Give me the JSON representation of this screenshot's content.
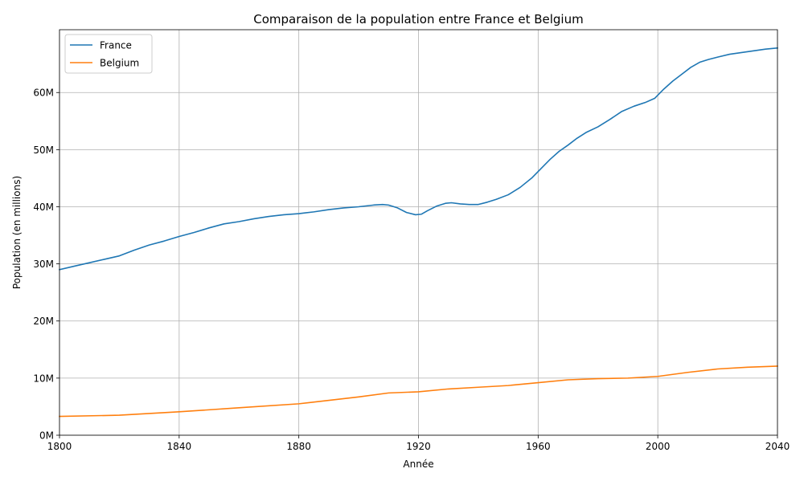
{
  "chart_data": {
    "type": "line",
    "title": "Comparaison de la population entre France et Belgium",
    "xlabel": "Année",
    "ylabel": "Population (en millions)",
    "xlim": [
      1800,
      2040
    ],
    "ylim": [
      0,
      71
    ],
    "x_ticks": [
      1800,
      1840,
      1880,
      1920,
      1960,
      2000,
      2040
    ],
    "x_tick_labels": [
      "1800",
      "1840",
      "1880",
      "1920",
      "1960",
      "2000",
      "2040"
    ],
    "y_ticks": [
      0,
      10,
      20,
      30,
      40,
      50,
      60
    ],
    "y_tick_labels": [
      "0M",
      "10M",
      "20M",
      "30M",
      "40M",
      "50M",
      "60M"
    ],
    "grid": true,
    "legend_position": "top-left",
    "series": [
      {
        "name": "France",
        "color": "#1f77b4",
        "x": [
          1800,
          1805,
          1810,
          1815,
          1820,
          1825,
          1830,
          1835,
          1840,
          1845,
          1850,
          1855,
          1860,
          1865,
          1870,
          1875,
          1880,
          1885,
          1890,
          1895,
          1900,
          1905,
          1908,
          1910,
          1913,
          1916,
          1919,
          1921,
          1923,
          1926,
          1929,
          1931,
          1934,
          1937,
          1940,
          1943,
          1946,
          1950,
          1954,
          1958,
          1961,
          1964,
          1967,
          1970,
          1973,
          1976,
          1980,
          1984,
          1988,
          1992,
          1996,
          1999,
          2002,
          2005,
          2008,
          2011,
          2014,
          2017,
          2020,
          2024,
          2028,
          2032,
          2036,
          2040
        ],
        "values": [
          29.0,
          29.6,
          30.2,
          30.8,
          31.4,
          32.4,
          33.3,
          34.0,
          34.8,
          35.5,
          36.3,
          37.0,
          37.4,
          37.9,
          38.3,
          38.6,
          38.8,
          39.1,
          39.5,
          39.8,
          40.0,
          40.3,
          40.4,
          40.3,
          39.8,
          39.0,
          38.6,
          38.7,
          39.3,
          40.1,
          40.6,
          40.7,
          40.5,
          40.4,
          40.4,
          40.8,
          41.3,
          42.1,
          43.4,
          45.1,
          46.7,
          48.3,
          49.7,
          50.8,
          52.0,
          53.0,
          54.0,
          55.3,
          56.7,
          57.6,
          58.3,
          59.0,
          60.6,
          62.0,
          63.2,
          64.4,
          65.3,
          65.8,
          66.2,
          66.7,
          67.0,
          67.3,
          67.6,
          67.8
        ]
      },
      {
        "name": "Belgium",
        "color": "#ff7f0e",
        "x": [
          1800,
          1820,
          1840,
          1860,
          1880,
          1900,
          1910,
          1920,
          1930,
          1940,
          1950,
          1960,
          1970,
          1980,
          1990,
          2000,
          2010,
          2020,
          2030,
          2040
        ],
        "values": [
          3.3,
          3.5,
          4.1,
          4.8,
          5.5,
          6.7,
          7.4,
          7.6,
          8.1,
          8.4,
          8.7,
          9.2,
          9.7,
          9.9,
          10.0,
          10.3,
          11.0,
          11.6,
          11.9,
          12.1
        ]
      }
    ]
  }
}
